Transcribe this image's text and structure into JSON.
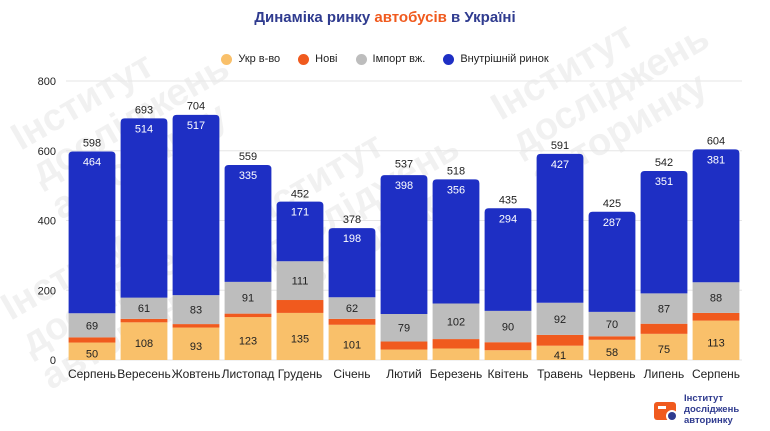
{
  "title": {
    "prefix": "Динаміка ринку ",
    "accent": "автобусів",
    "suffix": " в Україні"
  },
  "watermark_text": "Інститут\nдосліджень\nавторинку",
  "logo": {
    "text": "Інститут\nдосліджень\nавторинку"
  },
  "colors": {
    "ukr": "#F9C06A",
    "new": "#F05A1E",
    "import": "#BDBDBD",
    "domestic": "#1E2FC4",
    "title": "#2F3B8F",
    "accent": "#F05A1E"
  },
  "chart_data": {
    "type": "bar",
    "stacked": true,
    "title": "Динаміка ринку автобусів в Україні",
    "categories": [
      "Серпень",
      "Вересень",
      "Жовтень",
      "Листопад",
      "Грудень",
      "Січень",
      "Лютий",
      "Березень",
      "Квітень",
      "Травень",
      "Червень",
      "Липень",
      "Серпень"
    ],
    "series": [
      {
        "name": "Укр в-во",
        "key": "ukr",
        "values": [
          50,
          108,
          93,
          123,
          135,
          101,
          30,
          33,
          28,
          41,
          58,
          75,
          113
        ],
        "labels": [
          "50",
          "108",
          "93",
          "123",
          "135",
          "101",
          "",
          "",
          "",
          "41",
          "58",
          "75",
          "113"
        ]
      },
      {
        "name": "Нові",
        "key": "new",
        "values": [
          15,
          10,
          10,
          10,
          37,
          17,
          23,
          27,
          23,
          31,
          10,
          29,
          22
        ],
        "labels": [
          "",
          "",
          "",
          "",
          "",
          "",
          "",
          "",
          "",
          "",
          "",
          "",
          ""
        ]
      },
      {
        "name": "Імпорт вж.",
        "key": "import",
        "values": [
          69,
          61,
          83,
          91,
          111,
          62,
          79,
          102,
          90,
          92,
          70,
          87,
          88
        ],
        "labels": [
          "69",
          "61",
          "83",
          "91",
          "111",
          "62",
          "79",
          "102",
          "90",
          "92",
          "70",
          "87",
          "88"
        ]
      },
      {
        "name": "Внутрішній ринок",
        "key": "domestic",
        "values": [
          464,
          514,
          517,
          335,
          171,
          198,
          398,
          356,
          294,
          427,
          287,
          351,
          381
        ],
        "labels": [
          "464",
          "514",
          "517",
          "335",
          "171",
          "198",
          "398",
          "356",
          "294",
          "427",
          "287",
          "351",
          "381"
        ]
      }
    ],
    "totals": [
      598,
      693,
      704,
      559,
      452,
      378,
      537,
      518,
      435,
      591,
      425,
      542,
      604
    ],
    "yticks": [
      0,
      200,
      400,
      600,
      800
    ],
    "ylim": [
      0,
      800
    ],
    "legend": "top-center"
  }
}
